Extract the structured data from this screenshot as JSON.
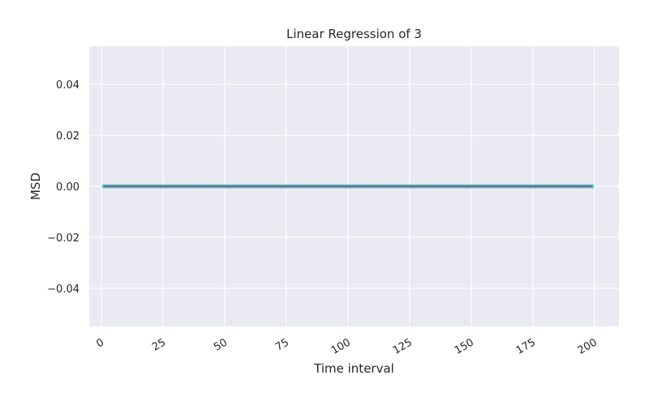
{
  "chart_data": {
    "type": "line",
    "title": "Linear Regression of 3",
    "xlabel": "Time interval",
    "ylabel": "MSD",
    "xlim": [
      -4.95,
      209.95
    ],
    "ylim": [
      -0.055,
      0.055
    ],
    "x_ticks": [
      0,
      25,
      50,
      75,
      100,
      125,
      150,
      175,
      200
    ],
    "x_tick_labels": [
      "0",
      "25",
      "50",
      "75",
      "100",
      "125",
      "150",
      "175",
      "200"
    ],
    "y_ticks": [
      -0.04,
      -0.02,
      0.0,
      0.02,
      0.04
    ],
    "y_tick_labels": [
      "−0.04",
      "−0.02",
      "0.00",
      "0.02",
      "0.04"
    ],
    "grid": true,
    "background": "#eaeaf2",
    "series": [
      {
        "kind": "scatter",
        "color": "#4cc9c9",
        "x_range": [
          1,
          199
        ],
        "y_constant": 0.0
      },
      {
        "kind": "regression-line",
        "color": "#b0306a",
        "x_range": [
          1,
          199
        ],
        "slope": 0.0,
        "intercept": 0.0
      }
    ]
  }
}
